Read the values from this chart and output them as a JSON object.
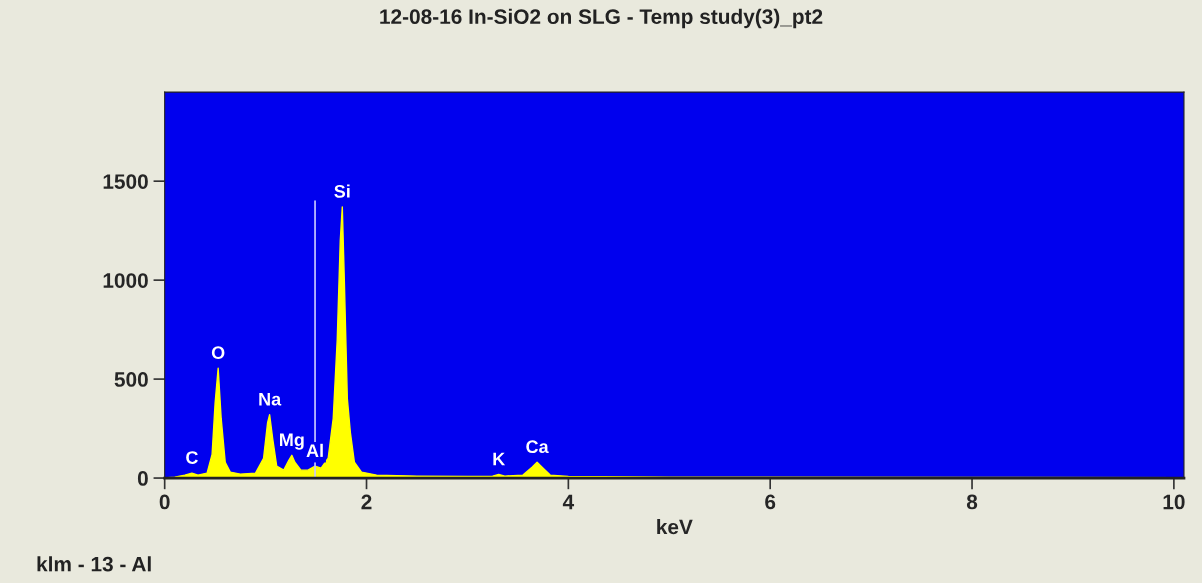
{
  "chart_data": {
    "type": "area",
    "title": "12-08-16 In-SiO2 on SLG - Temp study(3)_pt2",
    "xlabel": "keV",
    "xlim": [
      0,
      10.1
    ],
    "ylim": [
      0,
      1950
    ],
    "xticks": [
      0,
      2,
      4,
      6,
      8,
      10
    ],
    "yticks": [
      0,
      500,
      1000,
      1500
    ],
    "grid": false,
    "legend": false,
    "series": [
      {
        "color": "#ffff00",
        "x": [
          0,
          0.1,
          0.2,
          0.27,
          0.33,
          0.42,
          0.47,
          0.5,
          0.53,
          0.56,
          0.6,
          0.65,
          0.75,
          0.9,
          0.98,
          1.02,
          1.04,
          1.07,
          1.11,
          1.18,
          1.23,
          1.26,
          1.29,
          1.35,
          1.42,
          1.49,
          1.55,
          1.62,
          1.67,
          1.71,
          1.74,
          1.76,
          1.78,
          1.81,
          1.84,
          1.88,
          1.95,
          2.1,
          2.5,
          3.0,
          3.25,
          3.31,
          3.37,
          3.55,
          3.64,
          3.69,
          3.74,
          3.82,
          4.0,
          5,
          6,
          8,
          10.1
        ],
        "values": [
          0,
          5,
          15,
          25,
          15,
          25,
          120,
          380,
          555,
          300,
          80,
          30,
          20,
          25,
          100,
          280,
          320,
          200,
          60,
          40,
          90,
          115,
          80,
          40,
          40,
          60,
          50,
          100,
          300,
          700,
          1200,
          1370,
          1000,
          400,
          230,
          80,
          30,
          15,
          10,
          8,
          10,
          18,
          10,
          15,
          55,
          80,
          55,
          15,
          8,
          5,
          4,
          3,
          2
        ]
      },
      {
        "type": "line",
        "color": "#c8c8ff",
        "x": [
          1.49,
          1.49
        ],
        "values": [
          0,
          1400
        ]
      }
    ],
    "annotations": [
      {
        "text": "C",
        "x": 0.27,
        "y": 25
      },
      {
        "text": "O",
        "x": 0.53,
        "y": 555
      },
      {
        "text": "Na",
        "x": 1.04,
        "y": 320
      },
      {
        "text": "Mg",
        "x": 1.26,
        "y": 115
      },
      {
        "text": "Al",
        "x": 1.49,
        "y": 60
      },
      {
        "text": "Si",
        "x": 1.76,
        "y": 1370
      },
      {
        "text": "K",
        "x": 3.31,
        "y": 18
      },
      {
        "text": "Ca",
        "x": 3.69,
        "y": 80
      },
      "klm - 13 - Al"
    ]
  }
}
